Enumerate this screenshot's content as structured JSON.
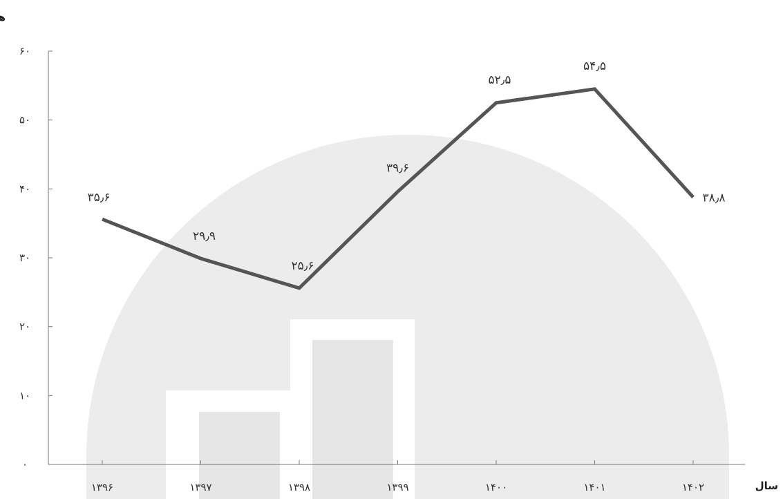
{
  "chart_data": {
    "type": "line",
    "title": "",
    "xlabel": "سال",
    "ylabel": "هزار تن",
    "ylim": [
      0,
      60
    ],
    "yticks": [
      "۰",
      "۱۰",
      "۲۰",
      "۳۰",
      "۴۰",
      "۵۰",
      "۶۰"
    ],
    "categories": [
      "۱۳۹۶",
      "۱۳۹۷",
      "۱۳۹۸",
      "۱۳۹۹",
      "۱۴۰۰",
      "۱۴۰۱",
      "۱۴۰۲"
    ],
    "values": [
      35.6,
      29.9,
      25.6,
      39.6,
      52.5,
      54.5,
      38.8
    ],
    "value_labels": [
      "۳۵٫۶",
      "۲۹٫۹",
      "۲۵٫۶",
      "۳۹٫۶",
      "۵۲٫۵",
      "۵۴٫۵",
      "۳۸٫۸"
    ],
    "grid": false,
    "line_color": "#555555"
  }
}
